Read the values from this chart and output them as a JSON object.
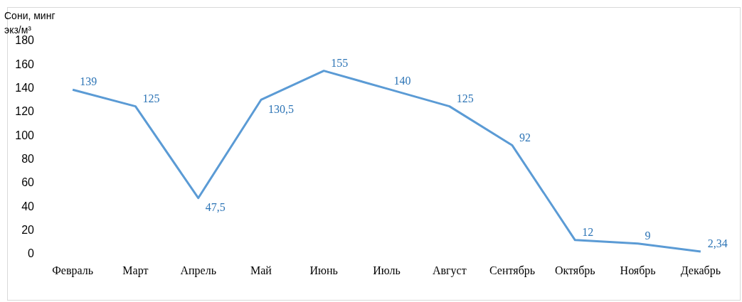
{
  "chart_data": {
    "type": "line",
    "ylabel": "Сони, минг\nэкз/м³",
    "categories": [
      "Февраль",
      "Март",
      "Апрель",
      "Май",
      "Июнь",
      "Июль",
      "Август",
      "Сентябрь",
      "Октябрь",
      "Ноябрь",
      "Декабрь"
    ],
    "series": [
      {
        "color": "#5b9bd5",
        "values": [
          139,
          125,
          47.5,
          130.5,
          155,
          140,
          125,
          92,
          12,
          9,
          2.34
        ],
        "value_labels": [
          "139",
          "125",
          "47,5",
          "130,5",
          "155",
          "140",
          "125",
          "92",
          "12",
          "9",
          "2,34"
        ]
      }
    ],
    "ylim": [
      0,
      180
    ],
    "yticks": [
      0,
      20,
      40,
      60,
      80,
      100,
      120,
      140,
      160,
      180
    ],
    "grid": false,
    "legend": false,
    "marker": "none",
    "line_style": "solid"
  }
}
